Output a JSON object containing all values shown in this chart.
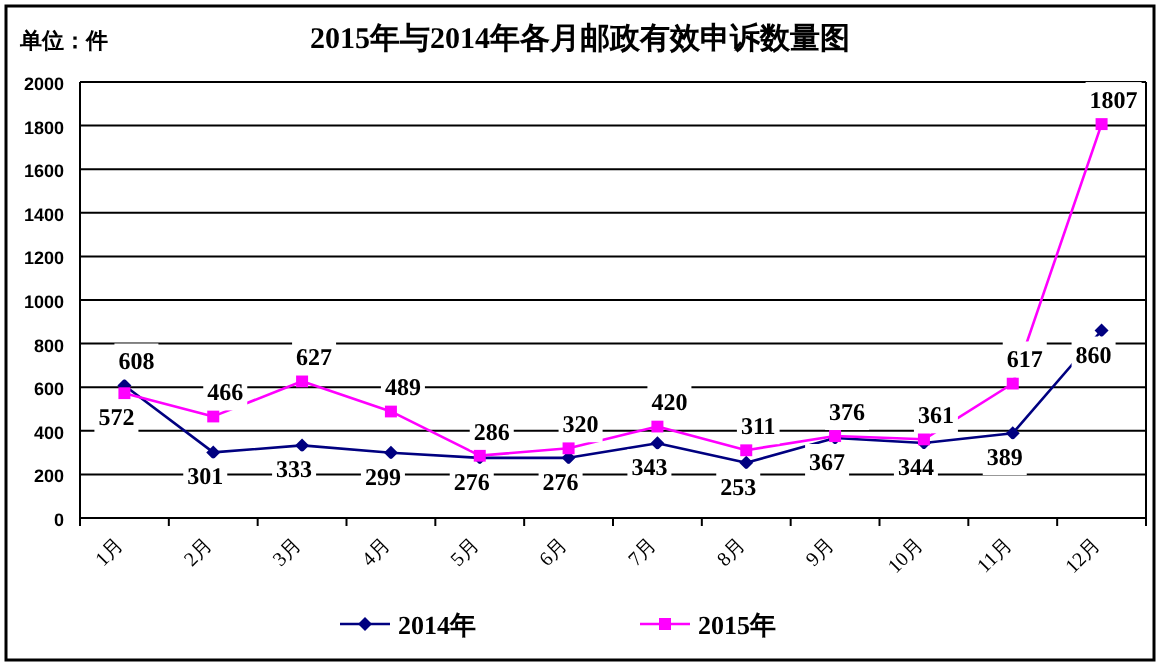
{
  "chart_data": {
    "type": "line",
    "title": "2015年与2014年各月邮政有效申诉数量图",
    "annotations": [
      "单位：件"
    ],
    "categories": [
      "1月",
      "2月",
      "3月",
      "4月",
      "5月",
      "6月",
      "7月",
      "8月",
      "9月",
      "10月",
      "11月",
      "12月"
    ],
    "series": [
      {
        "name": "2014年",
        "color": "#000080",
        "marker": "diamond",
        "values": [
          608,
          301,
          333,
          299,
          276,
          276,
          343,
          253,
          367,
          344,
          389,
          860
        ]
      },
      {
        "name": "2015年",
        "color": "#ff00ff",
        "marker": "square",
        "values": [
          572,
          466,
          627,
          489,
          286,
          320,
          420,
          311,
          376,
          361,
          617,
          1807
        ]
      }
    ],
    "ylim": [
      0,
      2000
    ],
    "yticks": [
      0,
      200,
      400,
      600,
      800,
      1000,
      1200,
      1400,
      1600,
      1800,
      2000
    ],
    "grid": "y",
    "legend": "bottom",
    "data_labels": true,
    "line_style": "solid"
  }
}
